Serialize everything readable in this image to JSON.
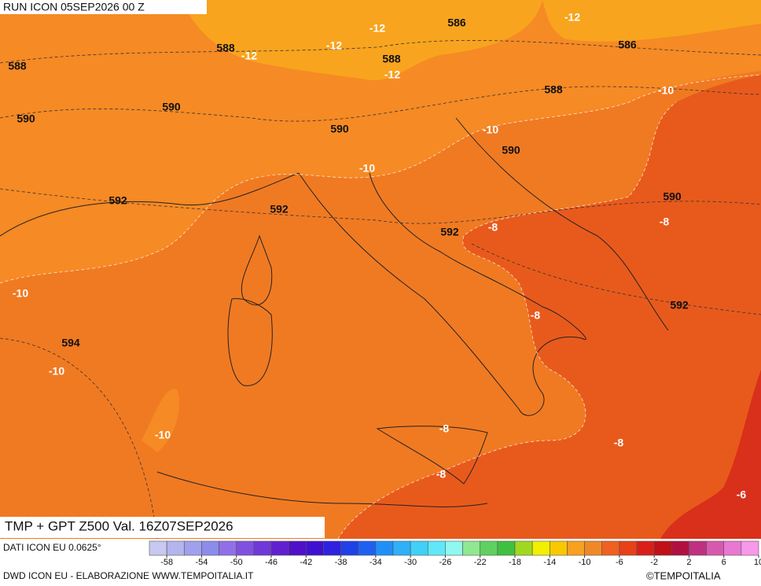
{
  "header": {
    "run": "RUN ICON 05SEP2026 00 Z"
  },
  "footer": {
    "title": "TMP + GPT Z500 Val. 16Z07SEP2026",
    "source": "DATI ICON EU 0.0625°",
    "credit": "DWD ICON EU - ELABORAZIONE WWW.TEMPOITALIA.IT",
    "copyright": "©TEMPOITALIA"
  },
  "geopotential_labels": [
    588,
    588,
    590,
    590,
    592,
    592,
    590,
    588,
    586,
    586,
    588,
    590,
    590,
    592,
    592,
    594
  ],
  "temperature_labels": [
    -12,
    -12,
    -12,
    -12,
    -12,
    -10,
    -10,
    -10,
    -8,
    -8,
    -10,
    -8,
    -10,
    -10,
    -8,
    -8,
    -8,
    -6
  ],
  "colorbar": {
    "ticks": [
      -58,
      -54,
      -50,
      -46,
      -42,
      -38,
      -34,
      -30,
      -26,
      -22,
      -18,
      -14,
      -10,
      -6,
      -2,
      2,
      6,
      10
    ],
    "colors": [
      "#c8c8f0",
      "#b4b4ee",
      "#a0a0ec",
      "#8c8cea",
      "#9070e8",
      "#8050e0",
      "#7038d8",
      "#6020d0",
      "#5010c8",
      "#4010d0",
      "#3020e0",
      "#2040e8",
      "#2060f0",
      "#2090f8",
      "#30b0f8",
      "#40d0f8",
      "#60e8f8",
      "#90f8f0",
      "#90e890",
      "#60d060",
      "#40c040",
      "#a0d820",
      "#f0f000",
      "#f8c800",
      "#f8a020",
      "#f08828",
      "#f06020",
      "#e84018",
      "#d82018",
      "#c01018",
      "#b01040",
      "#c03080",
      "#d858b0",
      "#e878d0",
      "#f898e8"
    ]
  }
}
